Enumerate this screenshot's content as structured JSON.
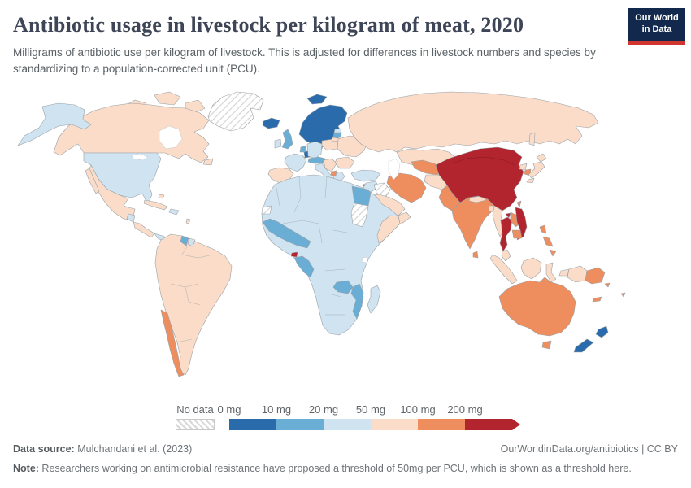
{
  "header": {
    "title": "Antibiotic usage in livestock per kilogram of meat, 2020",
    "subtitle": "Milligrams of antibiotic use per kilogram of livestock. This is adjusted for differences in livestock numbers and species by standardizing to a population-corrected unit (PCU).",
    "logo_line1": "Our World",
    "logo_line2": "in Data",
    "logo_bg": "#12294d",
    "logo_underline": "#d0352f"
  },
  "legend": {
    "no_data_label": "No data",
    "tick_labels": [
      "0 mg",
      "10 mg",
      "20 mg",
      "50 mg",
      "100 mg",
      "200 mg"
    ],
    "bin_colors": [
      "#2a6bac",
      "#6aaed6",
      "#cfe3f0",
      "#fadcc8",
      "#ee8e5e",
      "#b2242e"
    ]
  },
  "footer": {
    "datasource_label": "Data source:",
    "datasource_value": " Mulchandani et al. (2023)",
    "link": "OurWorldinData.org/antibiotics | CC BY",
    "note_label": "Note:",
    "note_value": " Researchers working on antimicrobial resistance have proposed a threshold of 50mg per PCU, which is shown as a threshold here."
  },
  "map": {
    "ocean_color": "#ffffff",
    "border_color": "#9aa1a6",
    "category_colors": {
      "0-10": "#2a6bac",
      "10-20": "#6aaed6",
      "20-50": "#cfe3f0",
      "50-100": "#fadcc8",
      "100-200": "#ee8e5e",
      "200+": "#b2242e"
    },
    "regions": {
      "greenland": "no-data",
      "arctic-islands": "50-100",
      "canada": "50-100",
      "newfoundland": "50-100",
      "alaska": "20-50",
      "usa": "20-50",
      "mexico": "50-100",
      "baja": "50-100",
      "cuba": "50-100",
      "hispaniola": "20-50",
      "bahamas": "50-100",
      "antilles": "50-100",
      "guatemala": "20-50",
      "central-america": "50-100",
      "panama": "20-50",
      "south-america": "50-100",
      "chile": "100-200",
      "guyana": "10-20",
      "suriname": "20-50",
      "iceland": "0-10",
      "svalbard": "0-10",
      "scandinavia": "0-10",
      "denmark": "0-10",
      "uk": "10-20",
      "ireland": "20-50",
      "france": "20-50",
      "iberia": "50-100",
      "germany": "20-50",
      "low-countries": "10-20",
      "alps": "10-20",
      "italy": "20-50",
      "poland": "50-100",
      "estonia": "20-50",
      "latvia": "10-20",
      "lithuania": "50-100",
      "belarus-ukraine": "50-100",
      "romania-bulgaria": "50-100",
      "balkans": "50-100",
      "greece": "20-50",
      "albania-macedonia": "100-200",
      "cyprus": "200+",
      "russia": "50-100",
      "sakhalin": "50-100",
      "kazakhstan": "50-100",
      "turkey": "20-50",
      "levant": "20-50",
      "iraq": "no-data",
      "saudi-arabia": "50-100",
      "yemen-oman": "50-100",
      "iran": "100-200",
      "turkmen-uzbek": "100-200",
      "kyrgyz-tajik": "50-100",
      "afghanistan": "50-100",
      "pakistan": "100-200",
      "india": "100-200",
      "nepal": "50-100",
      "bangladesh": "50-100",
      "sri-lanka": "100-200",
      "china": "200+",
      "hainan": "200+",
      "north-korea": "50-100",
      "south-korea": "100-200",
      "japan": "50-100",
      "taiwan": "100-200",
      "myanmar": "50-100",
      "thailand": "200+",
      "laos": "100-200",
      "vietnam": "200+",
      "cambodia": "100-200",
      "malaysia": "50-100",
      "indonesia": "50-100",
      "west-papua": "50-100",
      "timor-leste": "10-20",
      "png": "100-200",
      "philippines": "100-200",
      "africa": "20-50",
      "west-africa": "10-20",
      "egypt": "10-20",
      "sudan": "no-data",
      "somalia": "50-100",
      "congo-gabon": "10-20",
      "eq-guinea": "200+",
      "zambia": "10-20",
      "mozambique": "10-20",
      "madagascar": "20-50",
      "western-sahara": "no-data",
      "australia": "100-200",
      "tasmania": "100-200",
      "new-zealand": "0-10",
      "new-caledonia": "100-200",
      "fiji": "100-200",
      "solomon": "100-200"
    }
  }
}
